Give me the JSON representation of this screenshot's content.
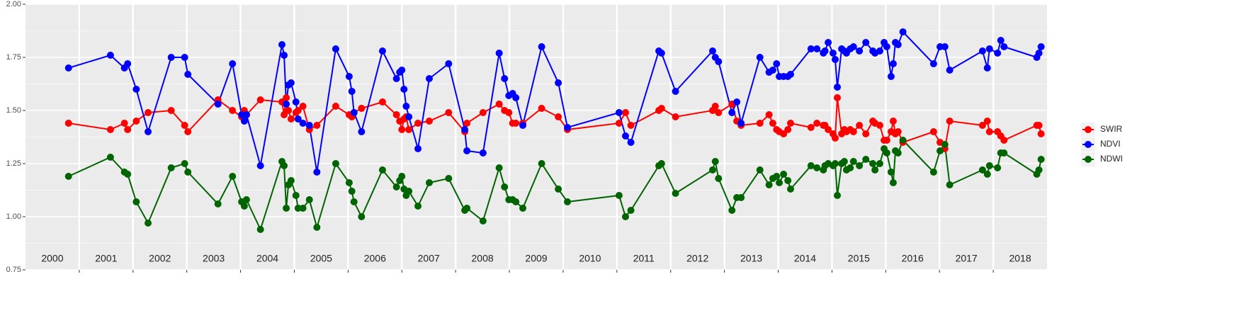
{
  "chart_data": {
    "type": "line",
    "x": [
      2000.8,
      2001.58,
      2001.84,
      2001.9,
      2002.06,
      2002.28,
      2002.71,
      2002.96,
      2003.02,
      2003.58,
      2003.85,
      2004.02,
      2004.07,
      2004.11,
      2004.37,
      2004.77,
      2004.81,
      2004.85,
      2004.89,
      2004.94,
      2005.03,
      2005.07,
      2005.16,
      2005.28,
      2005.42,
      2005.77,
      2006.02,
      2006.07,
      2006.11,
      2006.25,
      2006.64,
      2006.9,
      2006.96,
      2007.0,
      2007.04,
      2007.08,
      2007.13,
      2007.3,
      2007.51,
      2007.87,
      2008.17,
      2008.21,
      2008.51,
      2008.81,
      2008.91,
      2008.99,
      2009.06,
      2009.12,
      2009.25,
      2009.6,
      2009.91,
      2010.08,
      2011.04,
      2011.16,
      2011.26,
      2011.78,
      2011.83,
      2012.09,
      2012.78,
      2012.83,
      2012.89,
      2013.14,
      2013.23,
      2013.31,
      2013.66,
      2013.83,
      2013.9,
      2013.97,
      2014.02,
      2014.1,
      2014.18,
      2014.23,
      2014.61,
      2014.72,
      2014.84,
      2014.87,
      2014.93,
      2015.02,
      2015.06,
      2015.1,
      2015.18,
      2015.23,
      2015.27,
      2015.34,
      2015.4,
      2015.51,
      2015.63,
      2015.76,
      2015.8,
      2015.89,
      2015.97,
      2016.02,
      2016.1,
      2016.14,
      2016.18,
      2016.23,
      2016.32,
      2016.89,
      2017.01,
      2017.1,
      2017.19,
      2017.8,
      2017.89,
      2017.93,
      2018.08,
      2018.14,
      2018.2,
      2018.81,
      2018.85,
      2018.89
    ],
    "series": [
      {
        "name": "SWIR",
        "color": "#ff0000",
        "values": [
          1.44,
          1.41,
          1.44,
          1.41,
          1.45,
          1.49,
          1.5,
          1.43,
          1.4,
          1.55,
          1.5,
          1.47,
          1.5,
          1.48,
          1.55,
          1.54,
          1.48,
          1.56,
          1.5,
          1.46,
          1.49,
          1.5,
          1.52,
          1.41,
          1.43,
          1.52,
          1.48,
          1.47,
          1.49,
          1.51,
          1.54,
          1.48,
          1.45,
          1.41,
          1.46,
          1.47,
          1.41,
          1.44,
          1.45,
          1.49,
          1.4,
          1.44,
          1.49,
          1.53,
          1.5,
          1.49,
          1.44,
          1.44,
          1.44,
          1.51,
          1.47,
          1.41,
          1.44,
          1.49,
          1.43,
          1.5,
          1.51,
          1.47,
          1.5,
          1.52,
          1.49,
          1.53,
          1.45,
          1.43,
          1.44,
          1.48,
          1.44,
          1.41,
          1.4,
          1.39,
          1.41,
          1.44,
          1.42,
          1.44,
          1.43,
          1.43,
          1.41,
          1.39,
          1.37,
          1.56,
          1.39,
          1.41,
          1.4,
          1.41,
          1.4,
          1.43,
          1.39,
          1.45,
          1.44,
          1.43,
          1.36,
          1.36,
          1.4,
          1.45,
          1.39,
          1.4,
          1.35,
          1.4,
          1.35,
          1.32,
          1.45,
          1.43,
          1.45,
          1.4,
          1.4,
          1.38,
          1.36,
          1.43,
          1.43,
          1.39
        ]
      },
      {
        "name": "NDVI",
        "color": "#0000ff",
        "values": [
          1.7,
          1.76,
          1.7,
          1.72,
          1.6,
          1.4,
          1.75,
          1.75,
          1.67,
          1.53,
          1.72,
          1.48,
          1.45,
          1.48,
          1.24,
          1.81,
          1.76,
          1.53,
          1.62,
          1.63,
          1.54,
          1.46,
          1.44,
          1.43,
          1.21,
          1.79,
          1.66,
          1.59,
          1.49,
          1.4,
          1.78,
          1.65,
          1.68,
          1.69,
          1.6,
          1.52,
          1.47,
          1.32,
          1.65,
          1.72,
          1.41,
          1.31,
          1.3,
          1.77,
          1.65,
          1.57,
          1.58,
          1.56,
          1.43,
          1.8,
          1.63,
          1.42,
          1.49,
          1.38,
          1.35,
          1.78,
          1.77,
          1.59,
          1.78,
          1.75,
          1.73,
          1.49,
          1.54,
          1.44,
          1.75,
          1.68,
          1.69,
          1.72,
          1.66,
          1.66,
          1.66,
          1.67,
          1.79,
          1.79,
          1.77,
          1.78,
          1.82,
          1.77,
          1.74,
          1.61,
          1.79,
          1.78,
          1.77,
          1.79,
          1.8,
          1.78,
          1.82,
          1.78,
          1.77,
          1.78,
          1.82,
          1.8,
          1.66,
          1.72,
          1.82,
          1.81,
          1.87,
          1.72,
          1.8,
          1.8,
          1.69,
          1.78,
          1.7,
          1.79,
          1.77,
          1.83,
          1.8,
          1.75,
          1.77,
          1.8
        ]
      },
      {
        "name": "NDWI",
        "color": "#006400",
        "values": [
          1.19,
          1.28,
          1.21,
          1.2,
          1.07,
          0.97,
          1.23,
          1.25,
          1.21,
          1.06,
          1.19,
          1.07,
          1.05,
          1.08,
          0.94,
          1.26,
          1.24,
          1.04,
          1.15,
          1.17,
          1.1,
          1.04,
          1.04,
          1.08,
          0.95,
          1.25,
          1.16,
          1.12,
          1.07,
          1.0,
          1.22,
          1.14,
          1.17,
          1.19,
          1.13,
          1.1,
          1.12,
          1.05,
          1.16,
          1.18,
          1.03,
          1.04,
          0.98,
          1.23,
          1.14,
          1.08,
          1.08,
          1.07,
          1.04,
          1.25,
          1.13,
          1.07,
          1.1,
          1.0,
          1.03,
          1.24,
          1.25,
          1.11,
          1.22,
          1.26,
          1.18,
          1.03,
          1.09,
          1.09,
          1.22,
          1.15,
          1.18,
          1.19,
          1.16,
          1.2,
          1.17,
          1.13,
          1.24,
          1.23,
          1.22,
          1.24,
          1.25,
          1.24,
          1.25,
          1.1,
          1.25,
          1.26,
          1.22,
          1.23,
          1.26,
          1.24,
          1.27,
          1.25,
          1.22,
          1.25,
          1.32,
          1.3,
          1.21,
          1.16,
          1.31,
          1.3,
          1.36,
          1.21,
          1.31,
          1.34,
          1.15,
          1.22,
          1.2,
          1.24,
          1.23,
          1.3,
          1.3,
          1.2,
          1.22,
          1.27
        ]
      }
    ],
    "xlim": [
      2000,
      2019
    ],
    "xticks": [
      2001,
      2002,
      2003,
      2004,
      2005,
      2006,
      2007,
      2008,
      2009,
      2010,
      2011,
      2012,
      2013,
      2014,
      2015,
      2016,
      2017,
      2018
    ],
    "year_labels": [
      "2000",
      "2001",
      "2002",
      "2003",
      "2004",
      "2005",
      "2006",
      "2007",
      "2008",
      "2009",
      "2010",
      "2011",
      "2012",
      "2013",
      "2014",
      "2015",
      "2016",
      "2017",
      "2018"
    ],
    "ylim": [
      0.75,
      2
    ],
    "yticks": [
      {
        "value": 2,
        "label": "2.00"
      },
      1.75,
      {
        "value": 1.5,
        "label": "1.50"
      },
      1.25,
      {
        "value": 1,
        "label": "1.00"
      },
      0.75
    ],
    "grid": true,
    "legend": "right"
  }
}
